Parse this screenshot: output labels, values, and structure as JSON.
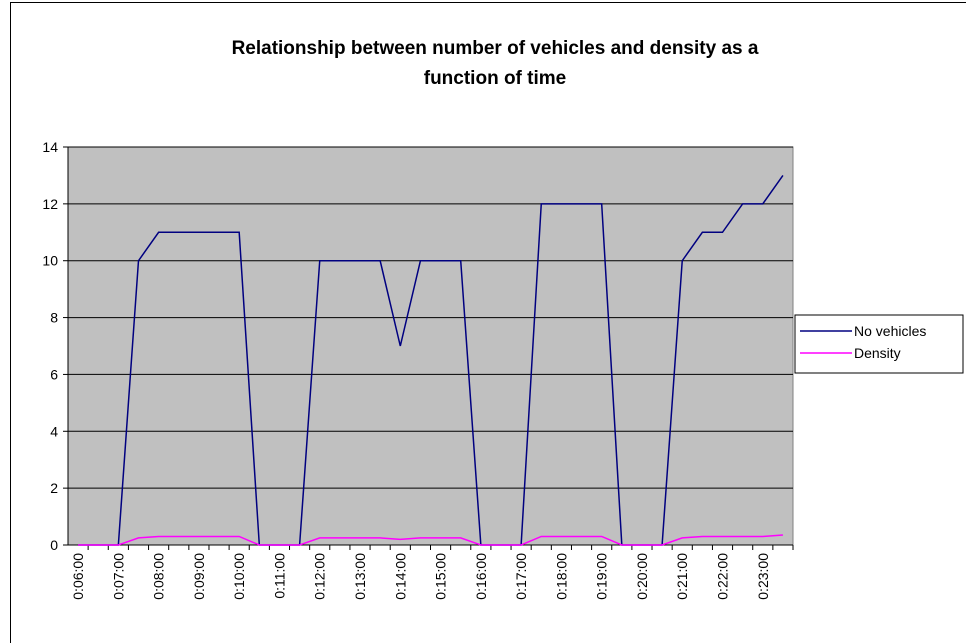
{
  "chart_data": {
    "type": "line",
    "title": "Relationship between number of vehicles and density  as a\nfunction of time",
    "categories": [
      "0:06:00",
      null,
      "0:07:00",
      null,
      "0:08:00",
      null,
      "0:09:00",
      null,
      "0:10:00",
      null,
      "0:11:00",
      null,
      "0:12:00",
      null,
      "0:13:00",
      null,
      "0:14:00",
      null,
      "0:15:00",
      null,
      "0:16:00",
      null,
      "0:17:00",
      null,
      "0:18:00",
      null,
      "0:19:00",
      null,
      "0:20:00",
      null,
      "0:21:00",
      null,
      "0:22:00",
      null,
      "0:23:00",
      null
    ],
    "series": [
      {
        "name": "No vehicles",
        "color": "#000080",
        "values": [
          0,
          0,
          0,
          10,
          11,
          11,
          11,
          11,
          11,
          0,
          0,
          0,
          10,
          10,
          10,
          10,
          7,
          10,
          10,
          10,
          0,
          0,
          0,
          12,
          12,
          12,
          12,
          0,
          0,
          0,
          10,
          11,
          11,
          12,
          12,
          13
        ]
      },
      {
        "name": "Density",
        "color": "#ff00ff",
        "values": [
          0,
          0,
          0,
          0.25,
          0.3,
          0.3,
          0.3,
          0.3,
          0.3,
          0,
          0,
          0,
          0.25,
          0.25,
          0.25,
          0.25,
          0.2,
          0.25,
          0.25,
          0.25,
          0,
          0,
          0,
          0.3,
          0.3,
          0.3,
          0.3,
          0,
          0,
          0,
          0.25,
          0.3,
          0.3,
          0.3,
          0.3,
          0.35
        ]
      }
    ],
    "ylim": [
      0,
      14
    ],
    "yticks": [
      0,
      2,
      4,
      6,
      8,
      10,
      12,
      14
    ],
    "grid": true,
    "legend": "right",
    "plot_background": "#c0c0c0"
  }
}
